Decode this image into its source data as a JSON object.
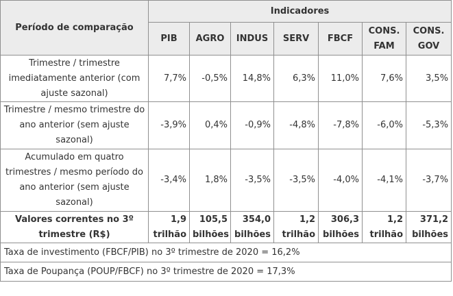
{
  "table": {
    "corner_header": "Período de comparação",
    "group_header": "Indicadores",
    "columns": [
      "PIB",
      "AGRO",
      "INDUS",
      "SERV",
      "FBCF",
      "CONS.\nFAM",
      "CONS.\nGOV"
    ],
    "rows": [
      {
        "period": "Trimestre / trimestre imediatamente anterior (com ajuste sazonal)",
        "values": [
          "7,7%",
          "-0,5%",
          "14,8%",
          "6,3%",
          "11,0%",
          "7,6%",
          "3,5%"
        ]
      },
      {
        "period": "Trimestre / mesmo trimestre do ano anterior (sem ajuste sazonal)",
        "values": [
          "-3,9%",
          "0,4%",
          "-0,9%",
          "-4,8%",
          "-7,8%",
          "-6,0%",
          "-5,3%"
        ]
      },
      {
        "period": "Acumulado em quatro trimestres / mesmo período do ano anterior (sem ajuste sazonal)",
        "values": [
          "-3,4%",
          "1,8%",
          "-3,5%",
          "-3,5%",
          "-4,0%",
          "-4,1%",
          "-3,7%"
        ]
      }
    ],
    "totals": {
      "label": "Valores correntes no 3º trimestre (R$)",
      "values": [
        "1,9 trilhão",
        "105,5 bilhões",
        "354,0 bilhões",
        "1,2 trilhão",
        "306,3 bilhões",
        "1,2 trilhão",
        "371,2 bilhões"
      ]
    },
    "footnotes": [
      "Taxa de investimento (FBCF/PIB) no 3º trimestre de 2020 = 16,2%",
      "Taxa de Poupança (POUP/FBCF) no 3º trimestre de 2020 = 17,3%"
    ]
  }
}
